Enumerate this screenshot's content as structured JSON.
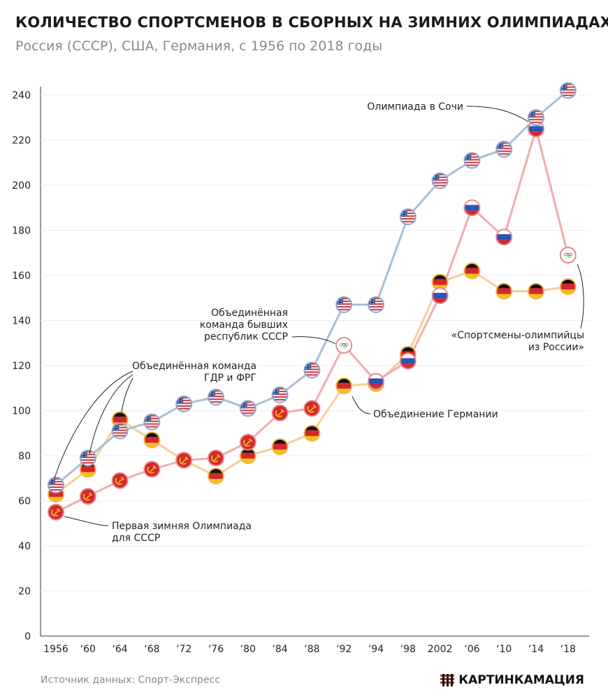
{
  "header": {
    "title": "КОЛИЧЕСТВО СПОРТСМЕНОВ В СБОРНЫХ НА ЗИМНИХ ОЛИМПИАДАХ",
    "subtitle": "Россия (СССР), США, Германия, с 1956 по 2018 годы"
  },
  "footer": {
    "source": "Источник данных: Спорт-Экспресс",
    "brand": "КАРТИНКАМАЦИЯ"
  },
  "chart_data": {
    "type": "line",
    "categories": [
      "1956",
      "‘60",
      "‘64",
      "‘68",
      "‘72",
      "‘76",
      "‘80",
      "‘84",
      "‘88",
      "‘92",
      "‘94",
      "‘98",
      "2002",
      "‘06",
      "‘10",
      "‘14",
      "‘18"
    ],
    "ylim": [
      0,
      250
    ],
    "yticks": [
      0,
      20,
      40,
      60,
      80,
      100,
      120,
      140,
      160,
      180,
      200,
      220,
      240
    ],
    "grid": "horizontal",
    "series": [
      {
        "key": "usa",
        "color": "#a9bfd8",
        "values": [
          67,
          79,
          91,
          95,
          103,
          106,
          101,
          107,
          118,
          147,
          147,
          186,
          202,
          211,
          216,
          230,
          242
        ],
        "markers": [
          "usa",
          "usa",
          "usa",
          "usa",
          "usa",
          "usa",
          "usa",
          "usa",
          "usa",
          "usa",
          "usa",
          "usa",
          "usa",
          "usa",
          "usa",
          "usa",
          "usa"
        ]
      },
      {
        "key": "russia",
        "color": "#efadb0",
        "values": [
          55,
          62,
          69,
          74,
          78,
          79,
          86,
          99,
          101,
          129,
          113,
          122,
          151,
          190,
          177,
          225,
          169
        ],
        "markers": [
          "ussr",
          "ussr",
          "ussr",
          "ussr",
          "ussr",
          "ussr",
          "ussr",
          "ussr",
          "ussr",
          "olympic",
          "russia",
          "russia",
          "russia",
          "russia",
          "russia",
          "russia",
          "olympic"
        ]
      },
      {
        "key": "germany",
        "color": "#f6cf94",
        "values": [
          63,
          74,
          96,
          87,
          78,
          71,
          80,
          84,
          90,
          111,
          112,
          125,
          157,
          162,
          153,
          153,
          155
        ],
        "markers": [
          "germany",
          "germany",
          "germany",
          "germany",
          "germany",
          "germany",
          "germany",
          "germany",
          "germany",
          "germany",
          "germany",
          "germany",
          "germany",
          "germany",
          "germany",
          "germany",
          "germany"
        ]
      }
    ],
    "annotations": [
      {
        "key": "sochi",
        "text": [
          "Олимпиада в Сочи"
        ]
      },
      {
        "key": "unified_team",
        "text": [
          "Объединённая",
          "команда бывших",
          "республик СССР"
        ]
      },
      {
        "key": "oar",
        "text": [
          "«Спортсмены-олимпийцы",
          "из России»"
        ]
      },
      {
        "key": "germany_unified",
        "text": [
          "Объединённая команда",
          "ГДР и ФРГ"
        ]
      },
      {
        "key": "reunification",
        "text": [
          "Объединение Германии"
        ]
      },
      {
        "key": "first_ussr",
        "text": [
          "Первая зимняя Олимпиада",
          "для СССР"
        ]
      }
    ]
  }
}
